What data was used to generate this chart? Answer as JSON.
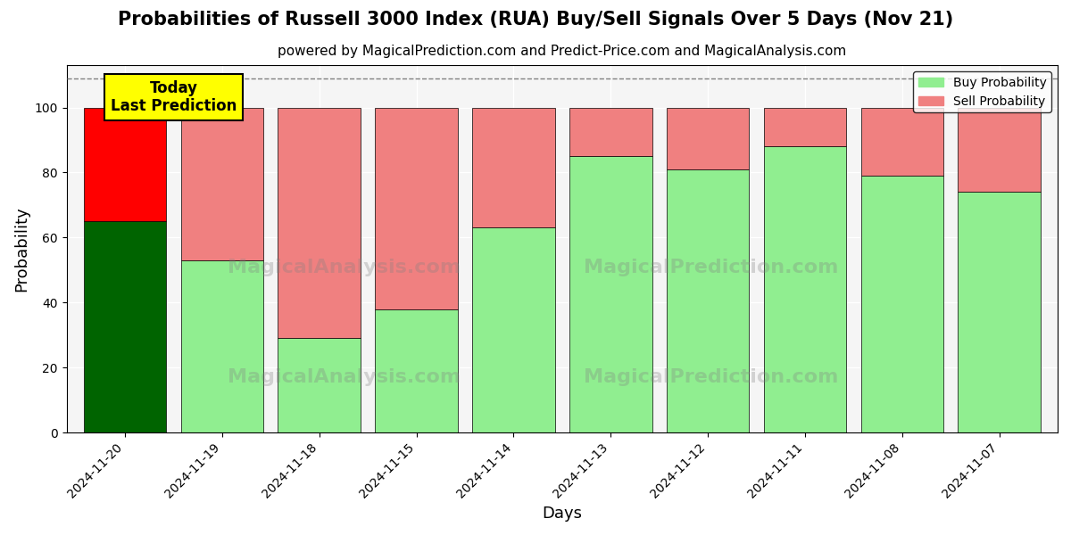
{
  "title": "Probabilities of Russell 3000 Index (RUA) Buy/Sell Signals Over 5 Days (Nov 21)",
  "subtitle": "powered by MagicalPrediction.com and Predict-Price.com and MagicalAnalysis.com",
  "xlabel": "Days",
  "ylabel": "Probability",
  "dates": [
    "2024-11-20",
    "2024-11-19",
    "2024-11-18",
    "2024-11-15",
    "2024-11-14",
    "2024-11-13",
    "2024-11-12",
    "2024-11-11",
    "2024-11-08",
    "2024-11-07"
  ],
  "buy_values": [
    65,
    53,
    29,
    38,
    63,
    85,
    81,
    88,
    79,
    74
  ],
  "sell_values": [
    35,
    47,
    71,
    62,
    37,
    15,
    19,
    12,
    21,
    26
  ],
  "today_buy_color": "#006400",
  "today_sell_color": "#FF0000",
  "other_buy_color": "#90EE90",
  "other_sell_color": "#F08080",
  "today_label_bg": "#FFFF00",
  "today_annotation": "Today\nLast Prediction",
  "ylim": [
    0,
    113
  ],
  "dashed_line_y": 109,
  "legend_buy_label": "Buy Probability",
  "legend_sell_label": "Sell Probability",
  "title_fontsize": 15,
  "subtitle_fontsize": 11,
  "axis_label_fontsize": 13,
  "tick_fontsize": 10,
  "bar_width": 0.85,
  "plot_bg_color": "#f5f5f5"
}
